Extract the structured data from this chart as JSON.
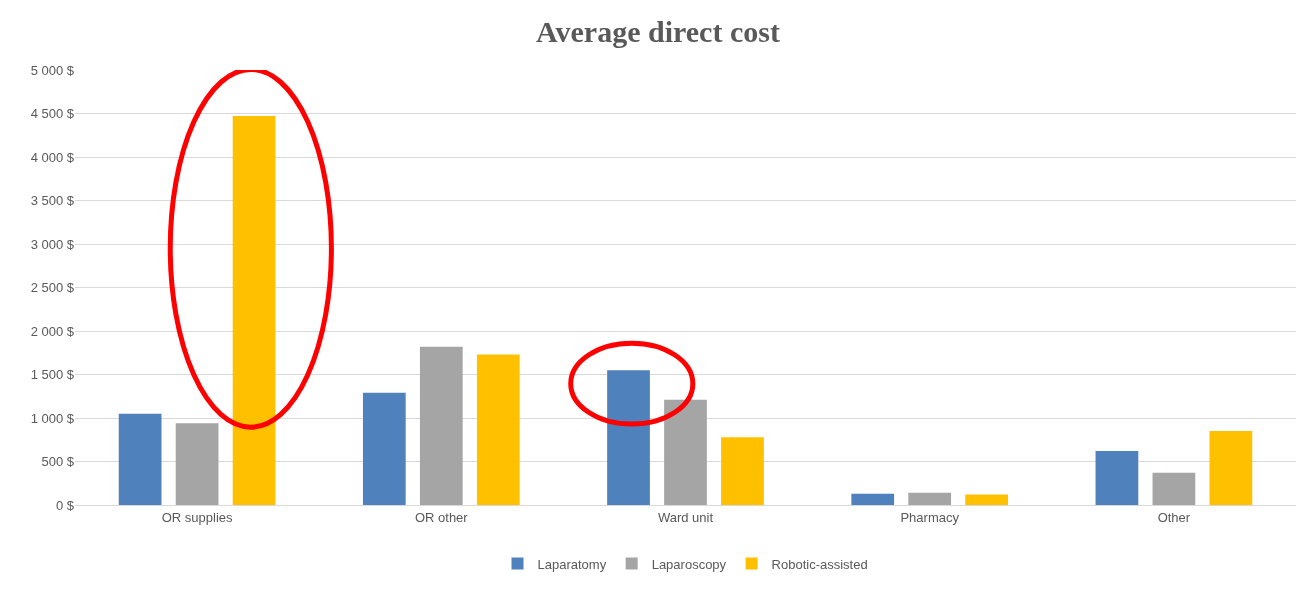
{
  "chart_data": {
    "type": "bar",
    "title": "Average direct cost",
    "categories": [
      "OR supplies",
      "OR other",
      "Ward unit",
      "Pharmacy",
      "Other"
    ],
    "series": [
      {
        "name": "Laparatomy",
        "color": "#4f81bd",
        "values": [
          1050,
          1290,
          1550,
          130,
          620
        ]
      },
      {
        "name": "Laparoscopy",
        "color": "#a5a5a5",
        "values": [
          940,
          1820,
          1210,
          140,
          370
        ]
      },
      {
        "name": "Robotic-assisted",
        "color": "#ffc000",
        "values": [
          4470,
          1730,
          780,
          120,
          850
        ]
      }
    ],
    "ylim": [
      0,
      5000
    ],
    "yticks": [
      {
        "value": 0,
        "label": "0 $"
      },
      {
        "value": 500,
        "label": "500 $"
      },
      {
        "value": 1000,
        "label": "1 000 $"
      },
      {
        "value": 1500,
        "label": "1 500 $"
      },
      {
        "value": 2000,
        "label": "2 000 $"
      },
      {
        "value": 2500,
        "label": "2 500 $"
      },
      {
        "value": 3000,
        "label": "3 000 $"
      },
      {
        "value": 3500,
        "label": "3 500 $"
      },
      {
        "value": 4000,
        "label": "4 000 $"
      },
      {
        "value": 4500,
        "label": "4 500 $"
      },
      {
        "value": 5000,
        "label": "5 000 $"
      }
    ],
    "grid": "y",
    "legend": "bottom"
  }
}
